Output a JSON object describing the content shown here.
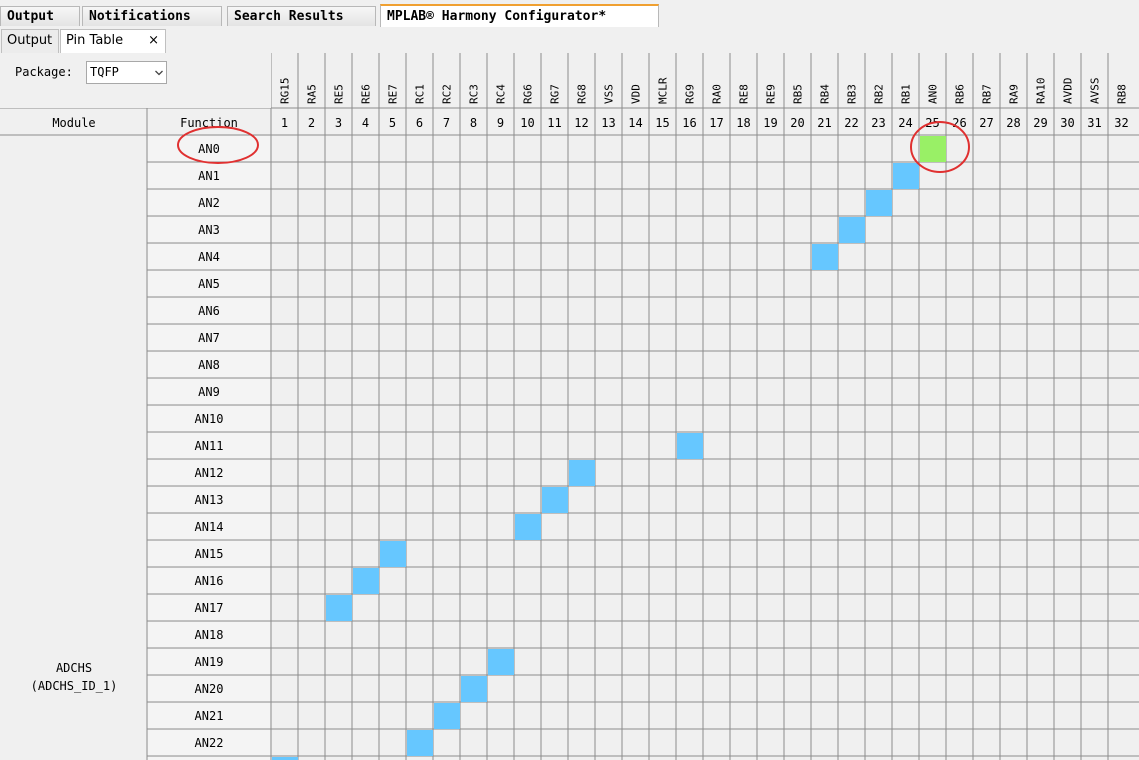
{
  "top_tabs": [
    "Output",
    "Notifications",
    "Search Results",
    "MPLAB® Harmony Configurator*"
  ],
  "active_top_tab": 3,
  "sub_tabs": [
    {
      "label": "Output",
      "closable": false
    },
    {
      "label": "Pin Table",
      "closable": true
    }
  ],
  "active_sub_tab": 1,
  "close_symbol": "×",
  "package": {
    "label": "Package:",
    "value": "TQFP"
  },
  "headers": {
    "module": "Module",
    "function": "Function"
  },
  "pins": [
    {
      "num": "1",
      "name": "RG15"
    },
    {
      "num": "2",
      "name": "RA5"
    },
    {
      "num": "3",
      "name": "RE5"
    },
    {
      "num": "4",
      "name": "RE6"
    },
    {
      "num": "5",
      "name": "RE7"
    },
    {
      "num": "6",
      "name": "RC1"
    },
    {
      "num": "7",
      "name": "RC2"
    },
    {
      "num": "8",
      "name": "RC3"
    },
    {
      "num": "9",
      "name": "RC4"
    },
    {
      "num": "10",
      "name": "RG6"
    },
    {
      "num": "11",
      "name": "RG7"
    },
    {
      "num": "12",
      "name": "RG8"
    },
    {
      "num": "13",
      "name": "VSS"
    },
    {
      "num": "14",
      "name": "VDD"
    },
    {
      "num": "15",
      "name": "MCLR"
    },
    {
      "num": "16",
      "name": "RG9"
    },
    {
      "num": "17",
      "name": "RA0"
    },
    {
      "num": "18",
      "name": "RE8"
    },
    {
      "num": "19",
      "name": "RE9"
    },
    {
      "num": "20",
      "name": "RB5"
    },
    {
      "num": "21",
      "name": "RB4"
    },
    {
      "num": "22",
      "name": "RB3"
    },
    {
      "num": "23",
      "name": "RB2"
    },
    {
      "num": "24",
      "name": "RB1"
    },
    {
      "num": "25",
      "name": "AN0"
    },
    {
      "num": "26",
      "name": "RB6"
    },
    {
      "num": "27",
      "name": "RB7"
    },
    {
      "num": "28",
      "name": "RA9"
    },
    {
      "num": "29",
      "name": "RA10"
    },
    {
      "num": "30",
      "name": "AVDD"
    },
    {
      "num": "31",
      "name": "AVSS"
    },
    {
      "num": "32",
      "name": "RB8"
    }
  ],
  "module": {
    "name": "ADCHS",
    "id": "(ADCHS_ID_1)"
  },
  "functions": [
    {
      "name": "AN0",
      "available_pin": 25,
      "assigned": true
    },
    {
      "name": "AN1",
      "available_pin": 24
    },
    {
      "name": "AN2",
      "available_pin": 23
    },
    {
      "name": "AN3",
      "available_pin": 22
    },
    {
      "name": "AN4",
      "available_pin": 21
    },
    {
      "name": "AN5"
    },
    {
      "name": "AN6"
    },
    {
      "name": "AN7"
    },
    {
      "name": "AN8"
    },
    {
      "name": "AN9"
    },
    {
      "name": "AN10"
    },
    {
      "name": "AN11",
      "available_pin": 16
    },
    {
      "name": "AN12",
      "available_pin": 12
    },
    {
      "name": "AN13",
      "available_pin": 11
    },
    {
      "name": "AN14",
      "available_pin": 10
    },
    {
      "name": "AN15",
      "available_pin": 5
    },
    {
      "name": "AN16",
      "available_pin": 4
    },
    {
      "name": "AN17",
      "available_pin": 3
    },
    {
      "name": "AN18"
    },
    {
      "name": "AN19",
      "available_pin": 9
    },
    {
      "name": "AN20",
      "available_pin": 8
    },
    {
      "name": "AN21",
      "available_pin": 7
    },
    {
      "name": "AN22",
      "available_pin": 6
    },
    {
      "name": "",
      "available_pin": 1
    }
  ],
  "colors": {
    "available": "#66c7ff",
    "assigned": "#99f066",
    "highlight_circle": "#e03030",
    "grid_line": "#8c8c8c",
    "cell_bg": "#f0f0f0",
    "active_tab_accent": "#f0a030"
  }
}
